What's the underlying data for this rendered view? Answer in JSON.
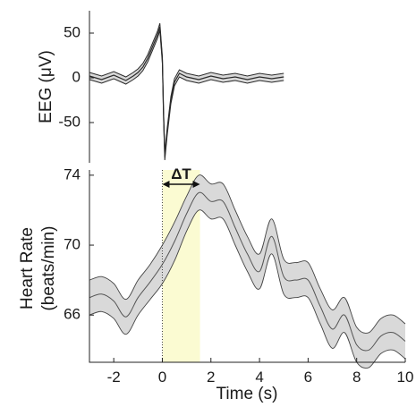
{
  "chart_data": [
    {
      "type": "line",
      "panel": "top",
      "ylabel": "EEG (μV)",
      "xlim": [
        -3,
        10
      ],
      "ylim": [
        -95,
        75
      ],
      "x_visible_range": [
        -3,
        5
      ],
      "yticks": [
        50,
        0,
        -50
      ],
      "series": [
        {
          "x": [
            -3.0,
            -2.5,
            -2.0,
            -1.5,
            -1.2,
            -1.0,
            -0.8,
            -0.6,
            -0.4,
            -0.2,
            -0.1,
            0.0,
            0.05,
            0.1,
            0.2,
            0.35,
            0.5,
            0.7,
            1.0,
            1.5,
            2.0,
            2.5,
            3.0,
            3.5,
            4.0,
            4.5,
            5.0
          ],
          "values": [
            2,
            -2,
            3,
            -3,
            2,
            6,
            12,
            22,
            35,
            48,
            57,
            20,
            -40,
            -88,
            -60,
            -25,
            -5,
            5,
            1,
            -2,
            2,
            -1,
            1,
            -2,
            1,
            -1,
            1
          ],
          "band": 4
        }
      ]
    },
    {
      "type": "line",
      "panel": "bottom",
      "xlabel": "Time (s)",
      "ylabel": "Heart Rate\n(beats/min)",
      "xlim": [
        -3,
        10
      ],
      "ylim": [
        63.3,
        74.3
      ],
      "xticks": [
        -2,
        0,
        2,
        4,
        6,
        8,
        10
      ],
      "yticks": [
        74,
        70,
        66
      ],
      "series": [
        {
          "x": [
            -3.0,
            -2.5,
            -2.0,
            -1.5,
            -1.0,
            -0.5,
            0.0,
            0.5,
            1.0,
            1.5,
            2.0,
            2.5,
            3.0,
            3.5,
            4.0,
            4.5,
            5.0,
            5.5,
            6.0,
            6.5,
            7.0,
            7.5,
            8.0,
            8.5,
            9.0,
            9.5,
            10.0
          ],
          "values": [
            67.0,
            67.2,
            66.8,
            65.9,
            67.0,
            67.9,
            68.9,
            70.2,
            71.8,
            73.0,
            72.5,
            72.5,
            71.0,
            69.5,
            68.5,
            70.5,
            68.2,
            68.0,
            68.0,
            66.5,
            65.2,
            66.0,
            64.3,
            64.0,
            64.8,
            65.0,
            64.5
          ],
          "band_upper": [
            68.0,
            68.2,
            67.8,
            66.9,
            68.0,
            68.9,
            70.0,
            71.3,
            72.8,
            74.0,
            73.5,
            73.5,
            72.0,
            70.5,
            69.5,
            71.5,
            69.2,
            69.0,
            69.0,
            67.5,
            66.3,
            67.0,
            65.3,
            65.0,
            65.8,
            66.0,
            65.5
          ],
          "band_lower": [
            66.0,
            66.2,
            65.8,
            64.9,
            66.0,
            66.9,
            67.8,
            69.1,
            70.8,
            72.0,
            71.5,
            71.5,
            70.0,
            68.5,
            67.5,
            69.5,
            67.2,
            67.0,
            67.0,
            65.5,
            64.1,
            65.0,
            63.3,
            63.0,
            63.8,
            64.0,
            63.5
          ]
        }
      ],
      "annotations": [
        {
          "type": "span",
          "x0": 0,
          "x1": 1.55,
          "color": "#fbfbd2"
        },
        {
          "type": "vline",
          "x": 0,
          "style": "dotted"
        },
        {
          "type": "arrow",
          "x0": 0,
          "x1": 1.55,
          "y": 74.3,
          "label": "ΔT"
        }
      ]
    }
  ],
  "colors": {
    "line": "#2a2a2a",
    "band_fill": "#d9d9d9",
    "highlight": "#fbfbd2"
  }
}
